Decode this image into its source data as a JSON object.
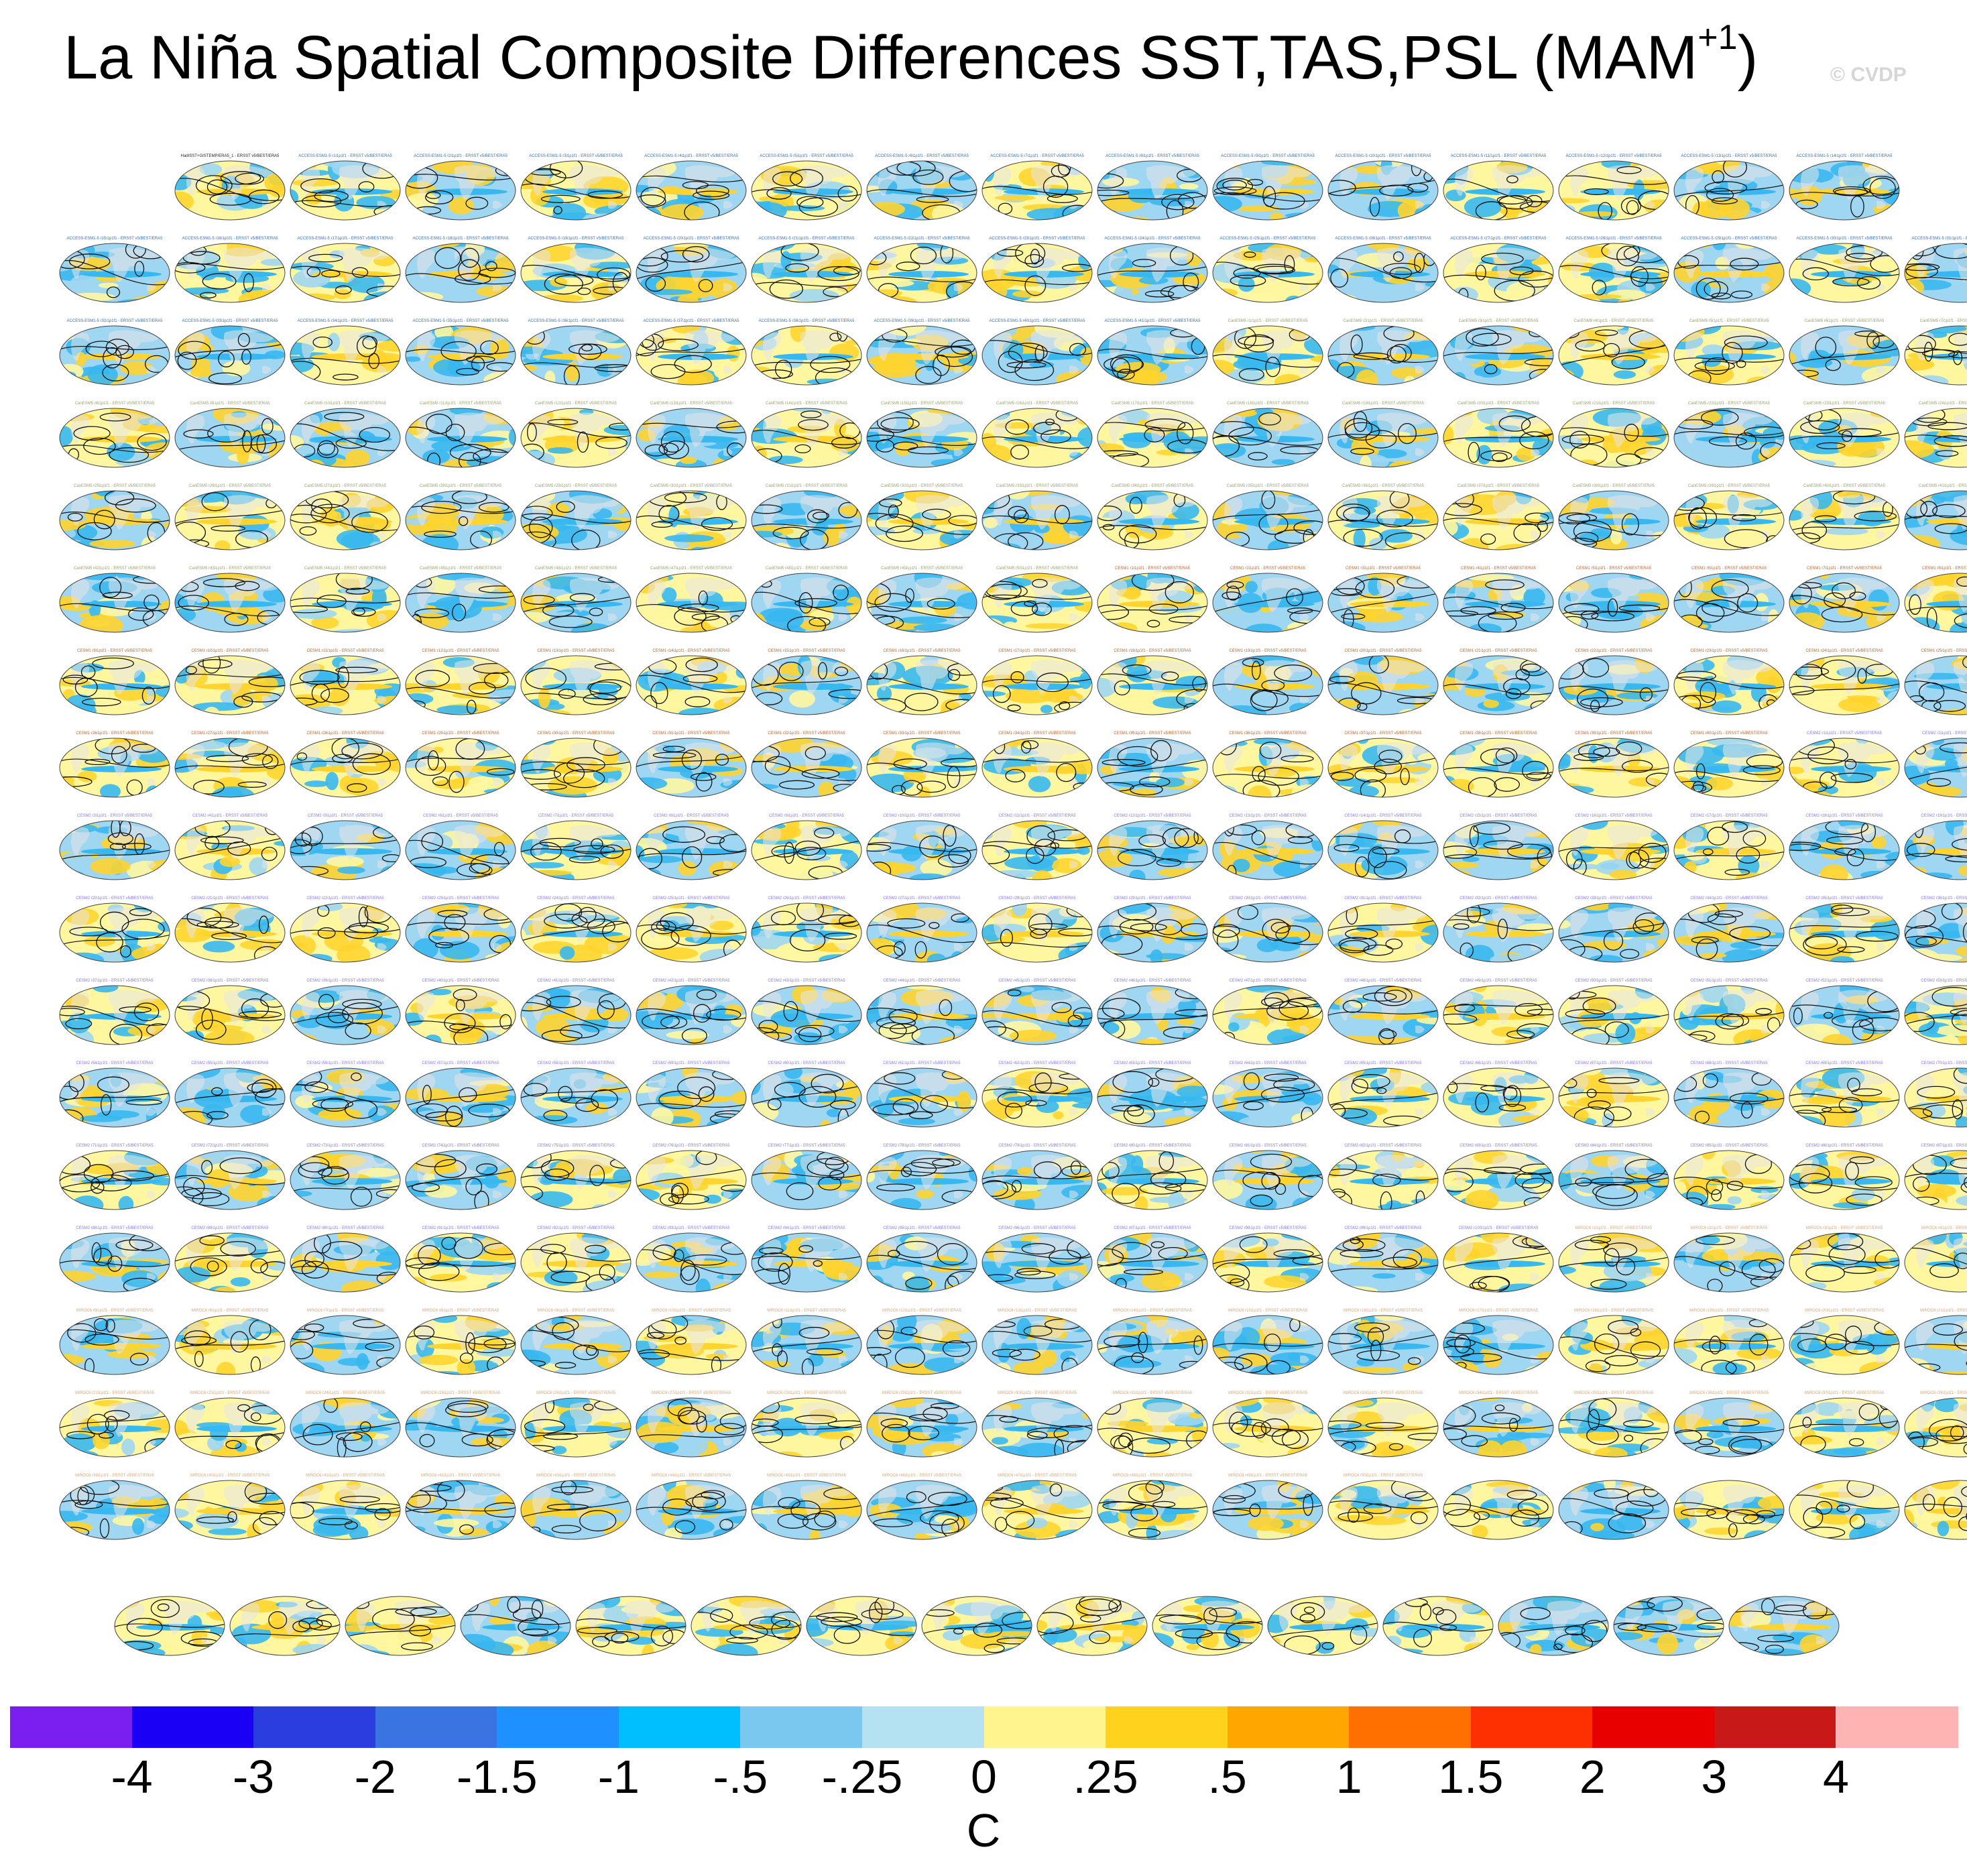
{
  "header": {
    "title_main": "La Niña Spatial Composite Differences SST,TAS,PSL (MAM",
    "title_sup": "+1",
    "title_end": ")",
    "watermark": "© CVDP"
  },
  "panels": {
    "first_label": "HadISST+GISTEMP/ERA5_1 - ERSST v5/BEST/ERA5",
    "label_groups": [
      {
        "model": "ACCESS-ESM1-5",
        "suffix": "- ERSST v5/BEST/ERA5",
        "color": "#3b6fa8",
        "count": 41
      },
      {
        "model": "CanESM5",
        "suffix": "- ERSST v5/BEST/ERA5",
        "color": "#9aa36a",
        "count": 50
      },
      {
        "model": "CESM1",
        "suffix": "- ERSST v5/BEST/ERA5",
        "color": "#b06a3a",
        "count": 40
      },
      {
        "model": "CESM2",
        "suffix": "- ERSST v5/BEST/ERA5",
        "color": "#8a7ad8",
        "count": 100
      },
      {
        "model": "MIROC6",
        "suffix": "- ERSST v5/BEST/ERA5",
        "color": "#d8a87a",
        "count": 50
      }
    ],
    "colors": {
      "ocean_cold": "#38b8f0",
      "ocean_cool": "#9fd6f2",
      "ocean_warm": "#ffd42e",
      "ocean_pale": "#fff7a0",
      "land": "#e6e6e6",
      "contour": "#111111"
    }
  },
  "chart_data": {
    "type": "heatmap",
    "title": "La Niña Spatial Composite Differences SST,TAS,PSL (MAM+1)",
    "layout": {
      "rows": 18,
      "panels_per_row": [
        15,
        17,
        17,
        17,
        17,
        17,
        17,
        17,
        17,
        17,
        17,
        17,
        17,
        17,
        17,
        17,
        17,
        15
      ],
      "total_panels": 302
    },
    "colorbar": {
      "units": "C",
      "tick_labels": [
        "-4",
        "-3",
        "-2",
        "-1.5",
        "-1",
        "-.5",
        "-.25",
        "0",
        ".25",
        ".5",
        "1",
        "1.5",
        "2",
        "3",
        "4"
      ],
      "colors": [
        "#7b1ff0",
        "#1a00f5",
        "#2a3ee0",
        "#3a74e2",
        "#1e90ff",
        "#00bfff",
        "#7ac8f0",
        "#b4e2f2",
        "#fff48e",
        "#ffd21e",
        "#ffa600",
        "#ff7000",
        "#ff3000",
        "#e80000",
        "#c81818",
        "#ffb4b4"
      ]
    }
  }
}
